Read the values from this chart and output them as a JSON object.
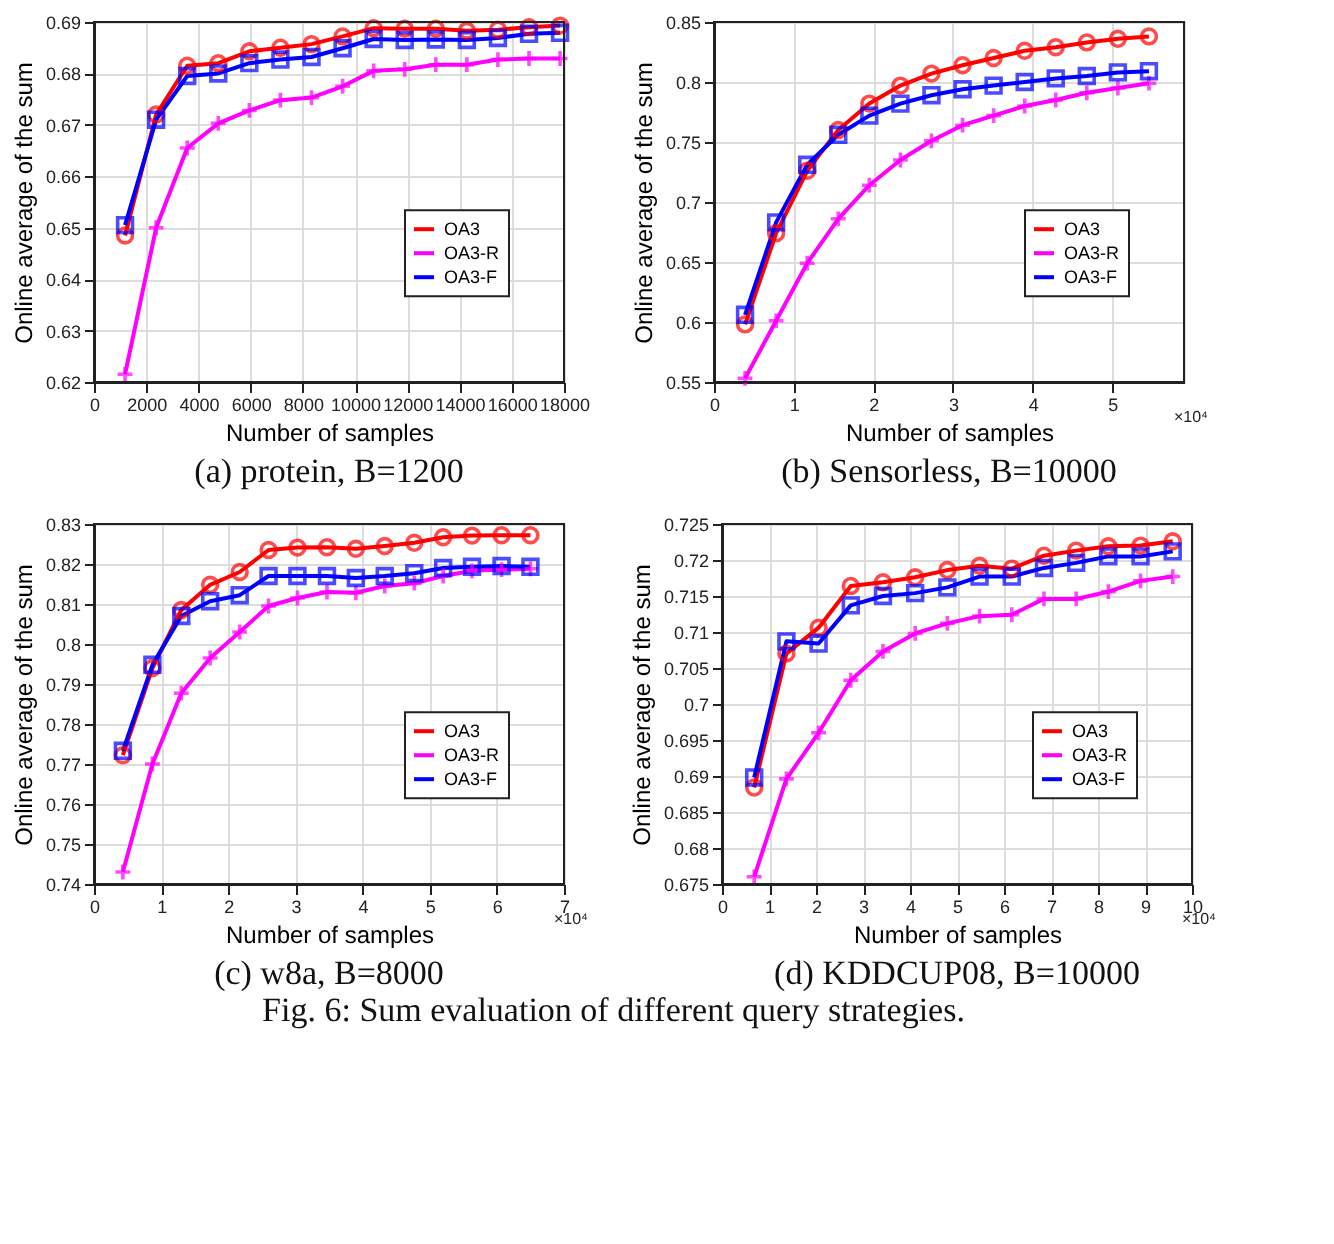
{
  "chart_data": [
    {
      "type": "line",
      "title": "(a) protein, B=1200",
      "xlabel": "Number of samples",
      "ylabel": "Online average of the sum",
      "x": [
        1190,
        2380,
        3570,
        4760,
        5950,
        7140,
        8330,
        9520,
        10710,
        11900,
        13090,
        14280,
        15470,
        16660,
        17850
      ],
      "series": [
        {
          "name": "OA3",
          "color": "#ff0000",
          "marker": "circle",
          "values": [
            0.6485,
            0.672,
            0.6815,
            0.682,
            0.6843,
            0.685,
            0.6857,
            0.6872,
            0.6888,
            0.6887,
            0.6887,
            0.6883,
            0.6885,
            0.689,
            0.6893
          ]
        },
        {
          "name": "OA3-R",
          "color": "#ff00ff",
          "marker": "cross",
          "values": [
            0.6215,
            0.65,
            0.6655,
            0.6703,
            0.6728,
            0.6748,
            0.6753,
            0.6775,
            0.6805,
            0.6808,
            0.6817,
            0.6817,
            0.6827,
            0.6829,
            0.6829
          ]
        },
        {
          "name": "OA3-F",
          "color": "#0000ff",
          "marker": "square",
          "values": [
            0.6505,
            0.671,
            0.6795,
            0.68,
            0.682,
            0.6827,
            0.6832,
            0.6849,
            0.6867,
            0.6865,
            0.6866,
            0.6865,
            0.6869,
            0.6877,
            0.6879
          ]
        }
      ],
      "xlim": [
        0,
        18000
      ],
      "xticks": [
        0,
        2000,
        4000,
        6000,
        8000,
        10000,
        12000,
        14000,
        16000,
        18000
      ],
      "ylim": [
        0.62,
        0.69
      ],
      "yticks": [
        0.62,
        0.63,
        0.64,
        0.65,
        0.66,
        0.67,
        0.68,
        0.69
      ],
      "grid": true,
      "legend": "right"
    },
    {
      "type": "line",
      "title": "(b) Sensorless, B=10000",
      "xlabel": "Number of samples",
      "ylabel": "Online average of the sum",
      "annotations": [
        "×10⁴"
      ],
      "x": [
        0.39,
        0.78,
        1.17,
        1.56,
        1.95,
        2.34,
        2.73,
        3.12,
        3.51,
        3.9,
        4.29,
        4.68,
        5.07,
        5.46
      ],
      "series": [
        {
          "name": "OA3",
          "color": "#ff0000",
          "marker": "circle",
          "values": [
            0.598,
            0.674,
            0.726,
            0.76,
            0.782,
            0.797,
            0.807,
            0.814,
            0.82,
            0.826,
            0.829,
            0.833,
            0.836,
            0.838
          ]
        },
        {
          "name": "OA3-R",
          "color": "#ff00ff",
          "marker": "cross",
          "values": [
            0.553,
            0.601,
            0.649,
            0.686,
            0.714,
            0.735,
            0.751,
            0.764,
            0.772,
            0.78,
            0.785,
            0.791,
            0.795,
            0.799
          ]
        },
        {
          "name": "OA3-F",
          "color": "#0000ff",
          "marker": "square",
          "values": [
            0.606,
            0.683,
            0.731,
            0.756,
            0.772,
            0.782,
            0.789,
            0.794,
            0.797,
            0.8,
            0.803,
            0.805,
            0.808,
            0.809
          ]
        }
      ],
      "xlim": [
        0,
        5.9
      ],
      "xticks": [
        0,
        1,
        2,
        3,
        4,
        5
      ],
      "ylim": [
        0.55,
        0.85
      ],
      "yticks": [
        0.55,
        0.6,
        0.65,
        0.7,
        0.75,
        0.8,
        0.85
      ],
      "grid": true,
      "legend": "right"
    },
    {
      "type": "line",
      "title": "(c) w8a, B=8000",
      "xlabel": "Number of samples",
      "ylabel": "Online average of the sum",
      "annotations": [
        "×10⁴"
      ],
      "x": [
        0.43,
        0.87,
        1.3,
        1.73,
        2.17,
        2.6,
        3.03,
        3.47,
        3.9,
        4.33,
        4.77,
        5.2,
        5.63,
        6.07,
        6.5
      ],
      "series": [
        {
          "name": "OA3",
          "color": "#ff0000",
          "marker": "circle",
          "values": [
            0.7722,
            0.794,
            0.8085,
            0.8148,
            0.818,
            0.8235,
            0.8241,
            0.8242,
            0.8238,
            0.8245,
            0.8253,
            0.8267,
            0.8271,
            0.8272,
            0.8272
          ]
        },
        {
          "name": "OA3-R",
          "color": "#ff00ff",
          "marker": "cross",
          "values": [
            0.743,
            0.77,
            0.7877,
            0.7965,
            0.803,
            0.8095,
            0.8115,
            0.813,
            0.8128,
            0.8145,
            0.8152,
            0.817,
            0.8183,
            0.8186,
            0.8188
          ]
        },
        {
          "name": "OA3-F",
          "color": "#0000ff",
          "marker": "square",
          "values": [
            0.7733,
            0.7948,
            0.807,
            0.8107,
            0.8122,
            0.817,
            0.817,
            0.817,
            0.8165,
            0.817,
            0.8177,
            0.819,
            0.8193,
            0.8195,
            0.8193
          ]
        }
      ],
      "xlim": [
        0,
        7
      ],
      "xticks": [
        0,
        1,
        2,
        3,
        4,
        5,
        6,
        7
      ],
      "ylim": [
        0.74,
        0.83
      ],
      "yticks": [
        0.74,
        0.75,
        0.76,
        0.77,
        0.78,
        0.79,
        0.8,
        0.81,
        0.82,
        0.83
      ],
      "grid": true,
      "legend": "right"
    },
    {
      "type": "line",
      "title": "(d) KDDCUP08, B=10000",
      "xlabel": "Number of samples",
      "ylabel": "Online average of the sum",
      "annotations": [
        "×10⁴",
        "Fig. 6: Sum evaluation of different query strategies."
      ],
      "x": [
        0.685,
        1.37,
        2.055,
        2.74,
        3.425,
        4.11,
        4.795,
        5.48,
        6.165,
        6.85,
        7.535,
        8.22,
        8.905,
        9.59
      ],
      "series": [
        {
          "name": "OA3",
          "color": "#ff0000",
          "marker": "circle",
          "values": [
            0.6884,
            0.707,
            0.7106,
            0.7164,
            0.7169,
            0.7176,
            0.7186,
            0.7192,
            0.7188,
            0.7206,
            0.7213,
            0.7219,
            0.722,
            0.7226
          ]
        },
        {
          "name": "OA3-R",
          "color": "#ff00ff",
          "marker": "cross",
          "values": [
            0.676,
            0.6896,
            0.696,
            0.7033,
            0.7073,
            0.7098,
            0.7112,
            0.7122,
            0.7124,
            0.7146,
            0.7146,
            0.7156,
            0.7171,
            0.7177
          ]
        },
        {
          "name": "OA3-F",
          "color": "#0000ff",
          "marker": "square",
          "values": [
            0.6898,
            0.7087,
            0.7084,
            0.7137,
            0.715,
            0.7154,
            0.7162,
            0.7177,
            0.7177,
            0.7189,
            0.7196,
            0.7205,
            0.7205,
            0.7212
          ]
        }
      ],
      "xlim": [
        0,
        10
      ],
      "xticks": [
        0,
        1,
        2,
        3,
        4,
        5,
        6,
        7,
        8,
        9,
        10
      ],
      "ylim": [
        0.675,
        0.725
      ],
      "yticks": [
        0.675,
        0.68,
        0.685,
        0.69,
        0.695,
        0.7,
        0.705,
        0.71,
        0.715,
        0.72,
        0.725
      ],
      "grid": true,
      "legend": "right"
    }
  ]
}
